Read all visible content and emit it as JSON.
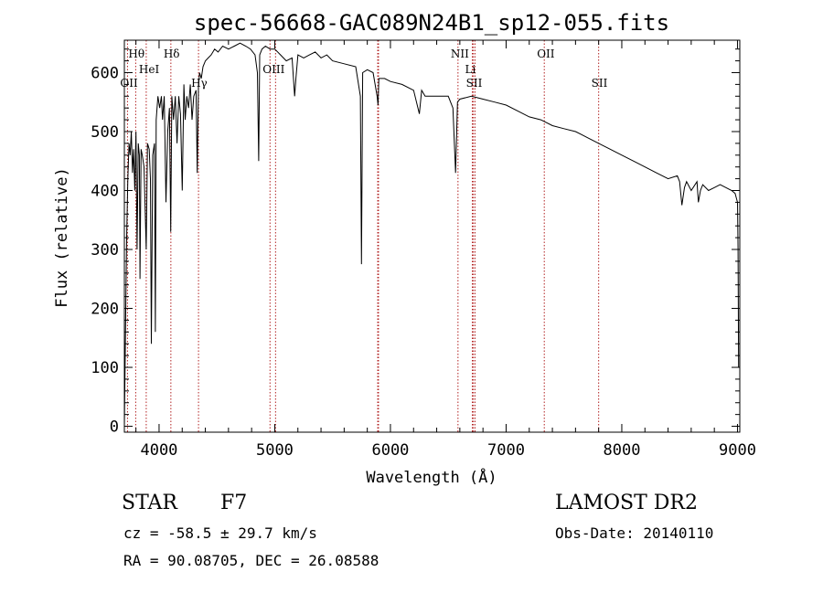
{
  "title": "spec-56668-GAC089N24B1_sp12-055.fits",
  "info": {
    "object_class": "STAR",
    "subclass": "F7",
    "survey": "LAMOST DR2",
    "cz": "cz = -58.5 ± 29.7 km/s",
    "obs_date": "Obs-Date: 20140110",
    "radec": "RA =  90.08705, DEC =  26.08588"
  },
  "colors": {
    "spectrum": "#000000",
    "lines": "#b22222",
    "axes": "#000000"
  },
  "chart_data": {
    "type": "line",
    "title": "spec-56668-GAC089N24B1_sp12-055.fits",
    "xlabel": "Wavelength (Å)",
    "ylabel": "Flux (relative)",
    "xlim": [
      3700,
      9020
    ],
    "ylim": [
      -10,
      655
    ],
    "xticks": [
      4000,
      5000,
      6000,
      7000,
      8000,
      9000
    ],
    "yticks": [
      0,
      100,
      200,
      300,
      400,
      500,
      600
    ],
    "grid": false,
    "spectrum": {
      "name": "flux",
      "x": [
        3700,
        3705,
        3720,
        3730,
        3740,
        3750,
        3760,
        3770,
        3780,
        3790,
        3800,
        3810,
        3820,
        3830,
        3835,
        3845,
        3855,
        3870,
        3889,
        3900,
        3915,
        3925,
        3933,
        3945,
        3960,
        3968,
        3975,
        3990,
        4005,
        4020,
        4030,
        4045,
        4060,
        4075,
        4090,
        4101,
        4110,
        4125,
        4140,
        4155,
        4170,
        4185,
        4200,
        4215,
        4226,
        4240,
        4255,
        4270,
        4285,
        4300,
        4320,
        4330,
        4340,
        4350,
        4365,
        4380,
        4400,
        4425,
        4450,
        4480,
        4510,
        4550,
        4600,
        4650,
        4700,
        4750,
        4790,
        4830,
        4850,
        4861,
        4870,
        4890,
        4920,
        4960,
        5000,
        5050,
        5100,
        5150,
        5172,
        5183,
        5200,
        5250,
        5300,
        5350,
        5400,
        5450,
        5500,
        5600,
        5700,
        5740,
        5750,
        5760,
        5800,
        5850,
        5885,
        5893,
        5900,
        5950,
        6000,
        6100,
        6200,
        6250,
        6270,
        6300,
        6400,
        6500,
        6540,
        6563,
        6580,
        6600,
        6700,
        6800,
        6900,
        7000,
        7100,
        7200,
        7300,
        7400,
        7500,
        7600,
        7700,
        7800,
        7900,
        8000,
        8100,
        8200,
        8300,
        8400,
        8480,
        8500,
        8520,
        8542,
        8560,
        8600,
        8650,
        8662,
        8680,
        8700,
        8750,
        8800,
        8850,
        8900,
        8950,
        8980,
        9000,
        9005,
        9010
      ],
      "y": [
        0,
        80,
        320,
        420,
        480,
        460,
        500,
        430,
        470,
        400,
        500,
        300,
        480,
        460,
        250,
        470,
        460,
        440,
        300,
        480,
        470,
        420,
        140,
        460,
        480,
        160,
        520,
        560,
        540,
        560,
        520,
        560,
        380,
        500,
        540,
        330,
        560,
        520,
        560,
        480,
        560,
        530,
        400,
        580,
        520,
        560,
        540,
        580,
        520,
        560,
        570,
        430,
        575,
        600,
        590,
        610,
        620,
        625,
        630,
        640,
        635,
        645,
        640,
        645,
        650,
        645,
        640,
        630,
        600,
        450,
        630,
        640,
        645,
        640,
        640,
        630,
        620,
        625,
        560,
        590,
        630,
        625,
        630,
        635,
        625,
        630,
        620,
        615,
        610,
        560,
        275,
        600,
        605,
        600,
        560,
        545,
        590,
        590,
        585,
        580,
        570,
        530,
        570,
        560,
        560,
        560,
        540,
        430,
        550,
        555,
        560,
        555,
        550,
        545,
        535,
        525,
        520,
        510,
        505,
        500,
        490,
        480,
        470,
        460,
        450,
        440,
        430,
        420,
        425,
        415,
        375,
        405,
        415,
        400,
        415,
        380,
        400,
        410,
        400,
        405,
        410,
        405,
        400,
        395,
        380,
        300,
        100
      ]
    },
    "line_markers": [
      {
        "label": "Hθ",
        "x": 3798
      },
      {
        "label": "OII",
        "x": 3727
      },
      {
        "label": "HeI",
        "x": 3889
      },
      {
        "label": "Hδ",
        "x": 4102
      },
      {
        "label": "Hγ",
        "x": 4341
      },
      {
        "label": "OIII",
        "x": 4959
      },
      {
        "label": "",
        "x": 5007
      },
      {
        "label": "",
        "x": 5890
      },
      {
        "label": "",
        "x": 5897
      },
      {
        "label": "NII",
        "x": 6584
      },
      {
        "label": "SII",
        "x": 6717
      },
      {
        "label": "",
        "x": 6731
      },
      {
        "label": "Li",
        "x": 6708
      },
      {
        "label": "OII",
        "x": 7330
      },
      {
        "label": "SII",
        "x": 7800
      }
    ]
  }
}
